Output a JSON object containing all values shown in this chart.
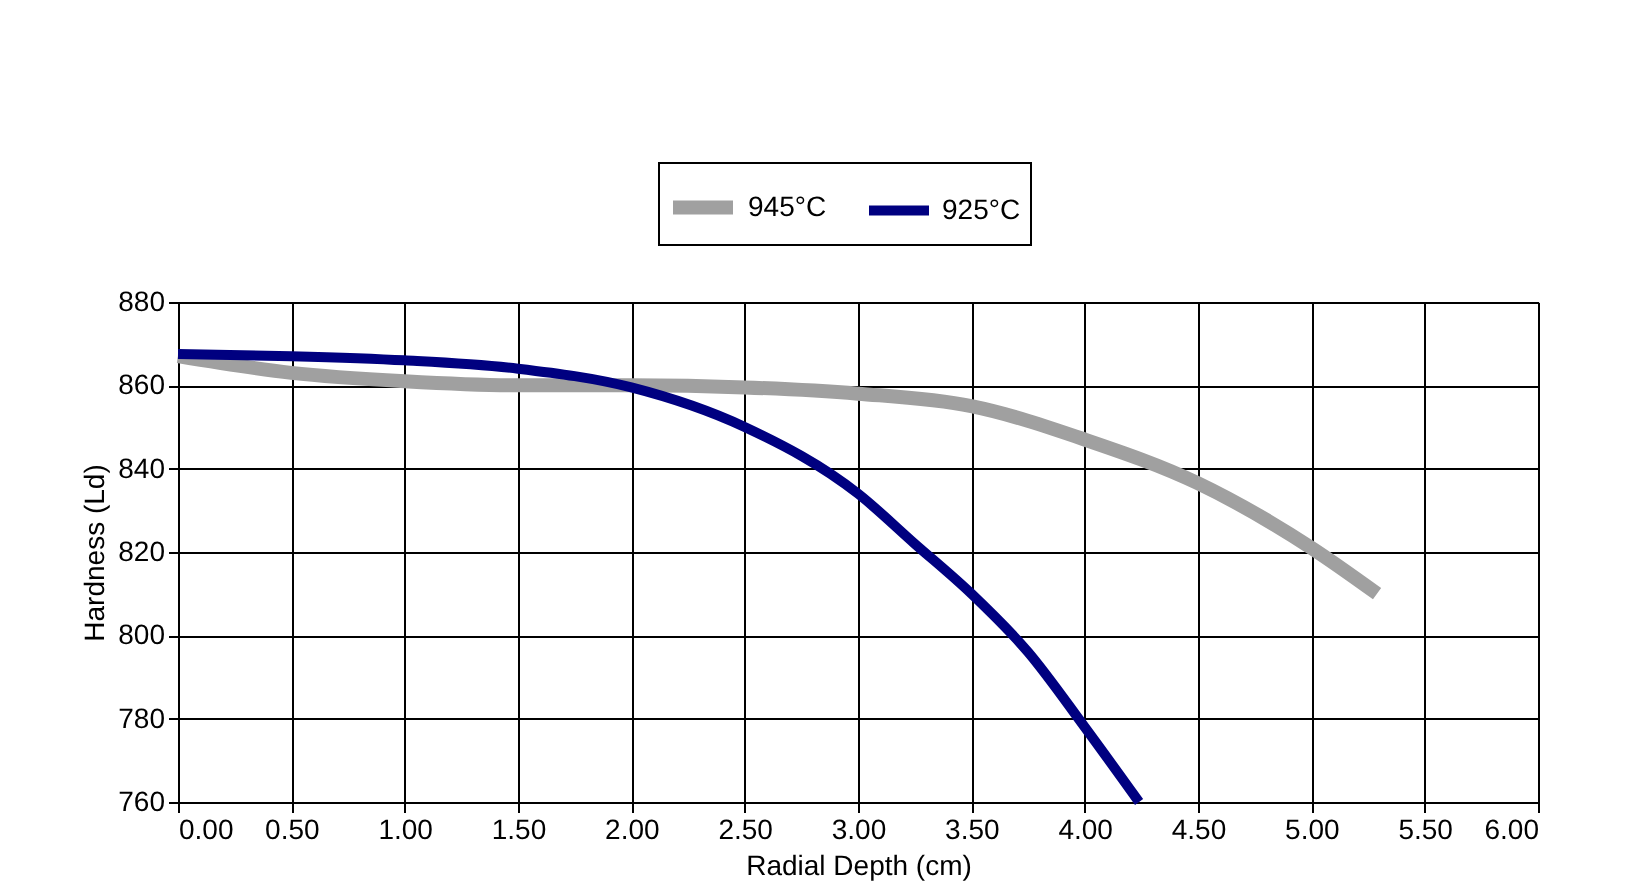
{
  "chart_data": {
    "type": "line",
    "xlabel": "Radial Depth (cm)",
    "ylabel": "Hardness (Ld)",
    "xlim": [
      0,
      6
    ],
    "xticks": [
      {
        "value": 0,
        "label": "0.00"
      },
      {
        "value": 0.5,
        "label": "0.50"
      },
      {
        "value": 1,
        "label": "1.00"
      },
      {
        "value": 1.5,
        "label": "1.50"
      },
      {
        "value": 2,
        "label": "2.00"
      },
      {
        "value": 2.5,
        "label": "2.50"
      },
      {
        "value": 3,
        "label": "3.00"
      },
      {
        "value": 3.5,
        "label": "3.50"
      },
      {
        "value": 4,
        "label": "4.00"
      },
      {
        "value": 4.5,
        "label": "4.50"
      },
      {
        "value": 5,
        "label": "5.00"
      },
      {
        "value": 5.5,
        "label": "5.50"
      },
      {
        "value": 6,
        "label": "6.00"
      }
    ],
    "ylim": [
      760,
      880
    ],
    "yticks": [
      760,
      780,
      800,
      820,
      840,
      860,
      880
    ],
    "grid": true,
    "legend": "top",
    "marker": "none",
    "line_style": "solid",
    "series": [
      {
        "name": "945°C",
        "color": "#a0a0a0",
        "x": [
          0,
          0.5,
          1.0,
          1.5,
          2.0,
          2.5,
          3.0,
          3.5,
          4.0,
          4.5,
          5.0,
          5.29
        ],
        "values": [
          867,
          863,
          861,
          860,
          860,
          859.5,
          858,
          855,
          847,
          836.5,
          821,
          810
        ]
      },
      {
        "name": "925°C",
        "color": "#000080",
        "x": [
          0,
          0.5,
          1.0,
          1.5,
          2.0,
          2.5,
          3.0,
          3.25,
          3.5,
          3.75,
          4.0,
          4.24
        ],
        "values": [
          867.5,
          867,
          866,
          864,
          859.5,
          850,
          834,
          822,
          810,
          796,
          778,
          760
        ]
      }
    ]
  }
}
